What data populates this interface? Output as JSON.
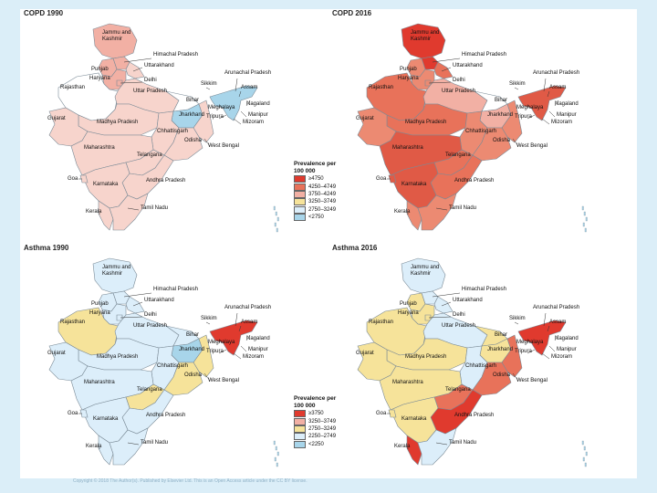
{
  "panels": [
    {
      "title": "COPD 1990",
      "legend": null,
      "colors": {
        "jk": "#f2b0a4",
        "hp": "#f2b0a4",
        "pb": "#f2b0a4",
        "uk": "#f7d4cc",
        "hr": "#f2b0a4",
        "dl": "#f2b0a4",
        "rj": "#ffffff",
        "up": "#f7d4cc",
        "br": "#ffffff",
        "mp": "#f7d4cc",
        "gj": "#f7d4cc",
        "jh": "#a8d5ea",
        "ch": "#f7d4cc",
        "od": "#f7d4cc",
        "wb": "#f7d4cc",
        "mh": "#f7d4cc",
        "tg": "#f7d4cc",
        "ap": "#f7d4cc",
        "ka": "#f7d4cc",
        "tn": "#f7d4cc",
        "kl": "#f7d4cc",
        "ne": "#a8d5ea"
      }
    },
    {
      "title": "COPD 2016",
      "legend": null,
      "colors": {
        "jk": "#e03a2e",
        "hp": "#e03a2e",
        "pb": "#ec8a72",
        "uk": "#e8725a",
        "hr": "#ec8a72",
        "dl": "#ec8a72",
        "rj": "#e8725a",
        "up": "#f2b0a4",
        "br": "#ffffff",
        "mp": "#e8725a",
        "gj": "#ec8a72",
        "jh": "#f2b0a4",
        "ch": "#ec8a72",
        "od": "#ec8a72",
        "wb": "#ec8a72",
        "mh": "#e05a46",
        "tg": "#e8725a",
        "ap": "#e8725a",
        "ka": "#e05a46",
        "tn": "#ec8a72",
        "kl": "#ec8a72",
        "ne": "#e05a46"
      }
    },
    {
      "title": "Asthma 1990",
      "legend": null,
      "colors": {
        "jk": "#dceefa",
        "hp": "#dceefa",
        "pb": "#dceefa",
        "uk": "#dceefa",
        "hr": "#dceefa",
        "dl": "#dceefa",
        "rj": "#f6e39a",
        "up": "#dceefa",
        "br": "#dceefa",
        "mp": "#dceefa",
        "gj": "#dceefa",
        "jh": "#a8d5ea",
        "ch": "#dceefa",
        "od": "#f6e39a",
        "wb": "#f6e39a",
        "mh": "#dceefa",
        "tg": "#f6e39a",
        "ap": "#dceefa",
        "ka": "#dceefa",
        "tn": "#dceefa",
        "kl": "#dceefa",
        "ne": "#e03a2e"
      }
    },
    {
      "title": "Asthma 2016",
      "legend": null,
      "colors": {
        "jk": "#dceefa",
        "hp": "#dceefa",
        "pb": "#f6e39a",
        "uk": "#dceefa",
        "hr": "#f6e39a",
        "dl": "#f6e39a",
        "rj": "#f6e39a",
        "up": "#dceefa",
        "br": "#f6e39a",
        "mp": "#f6e39a",
        "gj": "#f6e39a",
        "jh": "#f6e39a",
        "ch": "#dceefa",
        "od": "#e8725a",
        "wb": "#e8725a",
        "mh": "#f6e39a",
        "tg": "#e8725a",
        "ap": "#e03a2e",
        "ka": "#f6e39a",
        "tn": "#dceefa",
        "kl": "#e03a2e",
        "ne": "#e03a2e"
      }
    }
  ],
  "state_labels": {
    "jk": "Jammu and Kashmir",
    "hp": "Himachal Pradesh",
    "pb": "Punjab",
    "uk": "Uttarakhand",
    "hr": "Haryana",
    "dl": "Delhi",
    "rj": "Rajasthan",
    "up": "Uttar Pradesh",
    "br": "Bihar",
    "mp": "Madhya Pradesh",
    "gj": "Gujarat",
    "jh": "Jharkhand",
    "ch": "Chhattisgarh",
    "od": "Odisha",
    "wb": "West Bengal",
    "mh": "Maharashtra",
    "tg": "Telangana",
    "ap": "Andhra Pradesh",
    "ka": "Karnataka",
    "tn": "Tamil Nadu",
    "kl": "Kerala",
    "goa": "Goa",
    "sk": "Sikkim",
    "ar": "Arunachal Pradesh",
    "as": "Assam",
    "nl": "Nagaland",
    "ml": "Meghalaya",
    "mn": "Manipur",
    "tr": "Tripura",
    "mz": "Mizoram"
  },
  "legends": {
    "copd": {
      "title": "Prevalence per 100 000",
      "items": [
        {
          "label": "≥4750",
          "color": "#e03a2e"
        },
        {
          "label": "4250–4749",
          "color": "#e8725a"
        },
        {
          "label": "3750–4249",
          "color": "#f2b0a4"
        },
        {
          "label": "3250–3749",
          "color": "#f6e39a"
        },
        {
          "label": "2750–3249",
          "color": "#dceefa"
        },
        {
          "label": "<2750",
          "color": "#a8d5ea"
        }
      ]
    },
    "asthma": {
      "title": "Prevalence per 100 000",
      "items": [
        {
          "label": "≥3750",
          "color": "#e03a2e"
        },
        {
          "label": "3250–3749",
          "color": "#f2b0a4"
        },
        {
          "label": "2750–3249",
          "color": "#f6e39a"
        },
        {
          "label": "2250–2749",
          "color": "#dceefa"
        },
        {
          "label": "<2250",
          "color": "#a8d5ea"
        }
      ]
    }
  },
  "footer": "Copyright © 2018 The Author(s). Published by Elsevier Ltd. This is an Open Access article under the CC BY license."
}
